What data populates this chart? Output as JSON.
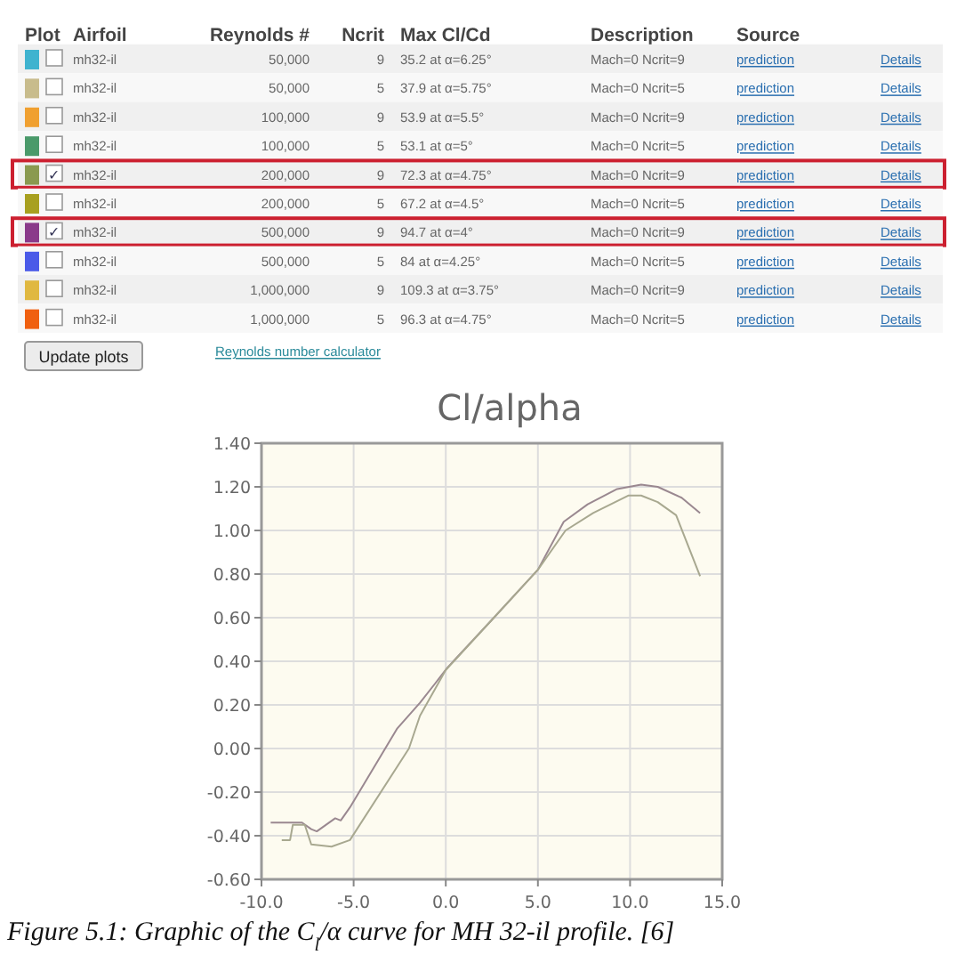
{
  "chart_data": [
    {
      "type": "other",
      "categories": [
        "Plot",
        "Airfoil",
        "Reynolds #",
        "Ncrit",
        "Max Cl/Cd",
        "Description",
        "Source",
        null
      ],
      "colors": [
        "#3fb3cf",
        "#c8bc8c",
        "#f0a030",
        "#4a9a6a",
        "#8a9a50",
        "#a8a020",
        "#8a3a8a",
        "#4a5ae8",
        "#e0b840",
        "#f06010"
      ],
      "cell_labels": [
        [
          null,
          "mh32-il",
          "50,000",
          "9",
          "35.2 at α=6.25°",
          "Mach=0 Ncrit=9",
          "prediction",
          "Details"
        ],
        [
          null,
          "mh32-il",
          "50,000",
          "5",
          "37.9 at α=5.75°",
          "Mach=0 Ncrit=5",
          "prediction",
          "Details"
        ],
        [
          null,
          "mh32-il",
          "100,000",
          "9",
          "53.9 at α=5.5°",
          "Mach=0 Ncrit=9",
          "prediction",
          "Details"
        ],
        [
          null,
          "mh32-il",
          "100,000",
          "5",
          "53.1 at α=5°",
          "Mach=0 Ncrit=5",
          "prediction",
          "Details"
        ],
        [
          "✓",
          "mh32-il",
          "200,000",
          "9",
          "72.3 at α=4.75°",
          "Mach=0 Ncrit=9",
          "prediction",
          "Details"
        ],
        [
          null,
          "mh32-il",
          "200,000",
          "5",
          "67.2 at α=4.5°",
          "Mach=0 Ncrit=5",
          "prediction",
          "Details"
        ],
        [
          "✓",
          "mh32-il",
          "500,000",
          "9",
          "94.7 at α=4°",
          "Mach=0 Ncrit=9",
          "prediction",
          "Details"
        ],
        [
          null,
          "mh32-il",
          "500,000",
          "5",
          "84 at α=4.25°",
          "Mach=0 Ncrit=5",
          "prediction",
          "Details"
        ],
        [
          null,
          "mh32-il",
          "1,000,000",
          "9",
          "109.3 at α=3.75°",
          "Mach=0 Ncrit=9",
          "prediction",
          "Details"
        ],
        [
          null,
          "mh32-il",
          "1,000,000",
          "5",
          "96.3 at α=4.75°",
          "Mach=0 Ncrit=5",
          "prediction",
          "Details"
        ]
      ],
      "annotations": [
        "Update plots",
        "Reynolds number calculator"
      ]
    },
    {
      "type": "line",
      "title": "Cl/alpha",
      "xlim": [
        -10,
        15
      ],
      "xticks": [
        {
          "value": -10,
          "label": "-10.0"
        },
        {
          "value": -5,
          "label": "-5.0"
        },
        {
          "value": 0,
          "label": "0.0"
        },
        {
          "value": 5,
          "label": "5.0"
        },
        {
          "value": 10,
          "label": "10.0"
        },
        {
          "value": 15,
          "label": "15.0"
        }
      ],
      "ylim": [
        -0.6,
        1.4
      ],
      "yticks": [
        {
          "value": -0.6,
          "label": "-0.60"
        },
        {
          "value": -0.4,
          "label": "-0.40"
        },
        {
          "value": -0.2,
          "label": "-0.20"
        },
        {
          "value": 0,
          "label": "0.00"
        },
        {
          "value": 0.2,
          "label": "0.20"
        },
        {
          "value": 0.4,
          "label": "0.40"
        },
        {
          "value": 0.6,
          "label": "0.60"
        },
        {
          "value": 0.8,
          "label": "0.80"
        },
        {
          "value": 1,
          "label": "1.00"
        },
        {
          "value": 1.2,
          "label": "1.20"
        },
        {
          "value": 1.4,
          "label": "1.40"
        }
      ],
      "grid": true,
      "series": [
        {
          "color": "#9a8890",
          "x": [
            -9.5,
            -7.8,
            -7.3,
            -7.0,
            -6.0,
            -5.7,
            -5.2,
            -2.65,
            -1.4,
            -0.56,
            0.08,
            2.5,
            5.0,
            6.4,
            7.7,
            9.3,
            10.6,
            11.5,
            12.8,
            13.8
          ],
          "values": [
            -0.34,
            -0.34,
            -0.37,
            -0.38,
            -0.32,
            -0.33,
            -0.27,
            0.09,
            0.21,
            0.3,
            0.37,
            0.59,
            0.82,
            1.04,
            1.12,
            1.19,
            1.21,
            1.2,
            1.15,
            1.08
          ]
        },
        {
          "color": "#a8a890",
          "x": [
            -8.9,
            -8.45,
            -8.3,
            -7.65,
            -7.3,
            -6.2,
            -5.2,
            -2.0,
            -1.4,
            0.0,
            2.5,
            5.0,
            6.5,
            8.0,
            9.9,
            10.6,
            11.5,
            12.5,
            13.8
          ],
          "values": [
            -0.42,
            -0.42,
            -0.35,
            -0.35,
            -0.44,
            -0.45,
            -0.42,
            0.0,
            0.15,
            0.36,
            0.59,
            0.82,
            1.0,
            1.08,
            1.16,
            1.16,
            1.13,
            1.07,
            0.79
          ]
        }
      ],
      "annotations": [
        "Figure 5.1: Graphic of the C$_{l}$/α curve for MH 32-il profile. [6]"
      ]
    }
  ]
}
